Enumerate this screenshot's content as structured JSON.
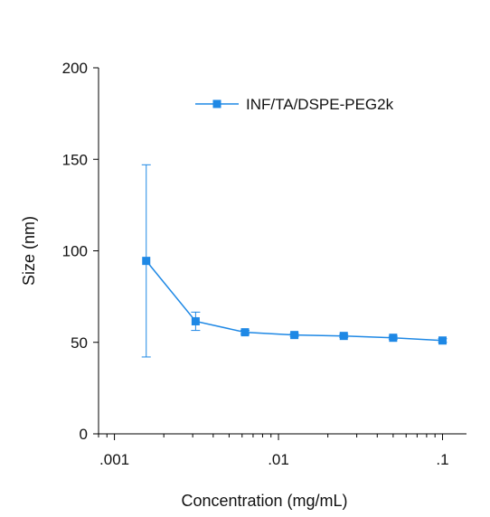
{
  "chart_data": {
    "type": "line",
    "title": "",
    "xlabel": "Concentration (mg/mL)",
    "ylabel": "Size (nm)",
    "x_scale": "log",
    "xlim": [
      0.0008,
      0.14
    ],
    "ylim": [
      0,
      200
    ],
    "x_ticks": [
      0.001,
      0.01,
      0.1
    ],
    "x_tick_labels": [
      ".001",
      ".01",
      ".1"
    ],
    "y_ticks": [
      0,
      50,
      100,
      150,
      200
    ],
    "y_tick_labels": [
      "0",
      "50",
      "100",
      "150",
      "200"
    ],
    "grid": false,
    "legend_position": "top-right",
    "series": [
      {
        "name": "INF/TA/DSPE-PEG2k",
        "color": "#1e88e5",
        "marker": "square",
        "x": [
          0.0015625,
          0.003125,
          0.00625,
          0.0125,
          0.025,
          0.05,
          0.1
        ],
        "y": [
          94.5,
          61.5,
          55.5,
          54,
          53.5,
          52.5,
          51
        ],
        "error": [
          52.5,
          5,
          1,
          0.8,
          0.8,
          0.8,
          1
        ]
      }
    ]
  }
}
